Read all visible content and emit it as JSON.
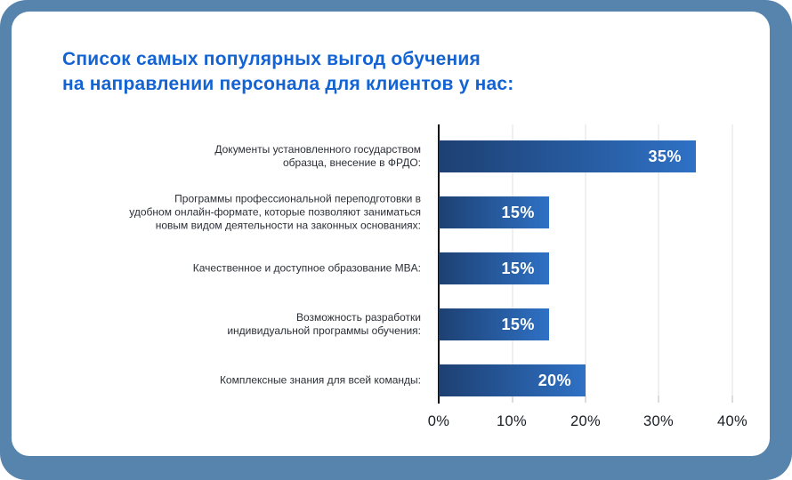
{
  "theme": {
    "frame_background": "#5684ac",
    "card_background": "#ffffff",
    "title_color": "#1463d3",
    "category_label_color": "#2b2f36",
    "axis_line_color": "#0d1117",
    "gridline_color": "#f0f0f0",
    "tick_label_color": "#181d24"
  },
  "chart_data": {
    "type": "bar",
    "orientation": "horizontal",
    "title": "Список самых популярных выгод обучения\nна направлении персонала для клиентов у нас:",
    "categories": [
      "Документы установленного государством\nобразца, внесение в ФРДО:",
      "Программы профессиональной переподготовки в\nудобном онлайн-формате, которые позволяют заниматься\nновым видом деятельности на законных основаниях:",
      "Качественное и доступное образование MBA:",
      "Возможность разработки\nиндивидуальной программы обучения:",
      "Комплексные знания для всей команды:"
    ],
    "values": [
      35,
      15,
      15,
      15,
      20
    ],
    "value_labels": [
      "35%",
      "15%",
      "15%",
      "15%",
      "20%"
    ],
    "value_label_color": "#ffffff",
    "x_ticks": [
      "0%",
      "10%",
      "20%",
      "30%",
      "40%"
    ],
    "xlim": [
      0,
      40
    ],
    "xlabel": "",
    "ylabel": "",
    "grid": "vertical-light",
    "legend": "none",
    "bar_color_gradient": [
      "#1d4072",
      "#2f71c5"
    ]
  }
}
